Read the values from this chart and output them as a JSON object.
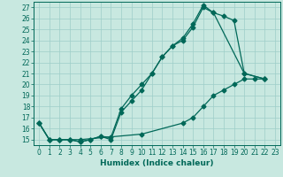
{
  "xlabel": "Humidex (Indice chaleur)",
  "xlim": [
    -0.5,
    23.5
  ],
  "ylim": [
    14.5,
    27.5
  ],
  "xticks": [
    0,
    1,
    2,
    3,
    4,
    5,
    6,
    7,
    8,
    9,
    10,
    11,
    12,
    13,
    14,
    15,
    16,
    17,
    18,
    19,
    20,
    21,
    22,
    23
  ],
  "yticks": [
    15,
    16,
    17,
    18,
    19,
    20,
    21,
    22,
    23,
    24,
    25,
    26,
    27
  ],
  "bg_color": "#c8e8e0",
  "line_color": "#006858",
  "grid_color": "#9ecec8",
  "line1_x": [
    0,
    1,
    2,
    3,
    4,
    5,
    6,
    7,
    8,
    9,
    10,
    11,
    12,
    13,
    14,
    15,
    16,
    17,
    20,
    22
  ],
  "line1_y": [
    16.5,
    15.0,
    15.0,
    15.0,
    14.8,
    15.0,
    15.3,
    15.0,
    17.5,
    18.5,
    19.5,
    21.0,
    22.5,
    23.5,
    24.0,
    25.2,
    27.0,
    26.5,
    21.0,
    20.5
  ],
  "line2_x": [
    0,
    1,
    2,
    3,
    4,
    5,
    6,
    7,
    8,
    9,
    10,
    11,
    12,
    13,
    14,
    15,
    16,
    17,
    18,
    19,
    20,
    22
  ],
  "line2_y": [
    16.5,
    15.0,
    15.0,
    15.0,
    14.8,
    15.0,
    15.3,
    15.2,
    17.8,
    19.0,
    20.0,
    21.0,
    22.5,
    23.5,
    24.2,
    25.5,
    27.2,
    26.5,
    26.2,
    25.8,
    21.0,
    20.5
  ],
  "line3_x": [
    0,
    1,
    2,
    3,
    4,
    10,
    14,
    15,
    16,
    17,
    18,
    19,
    20,
    21,
    22
  ],
  "line3_y": [
    16.5,
    15.0,
    15.0,
    15.0,
    15.0,
    15.5,
    16.5,
    17.0,
    18.0,
    19.0,
    19.5,
    20.0,
    20.5,
    20.5,
    20.5
  ]
}
